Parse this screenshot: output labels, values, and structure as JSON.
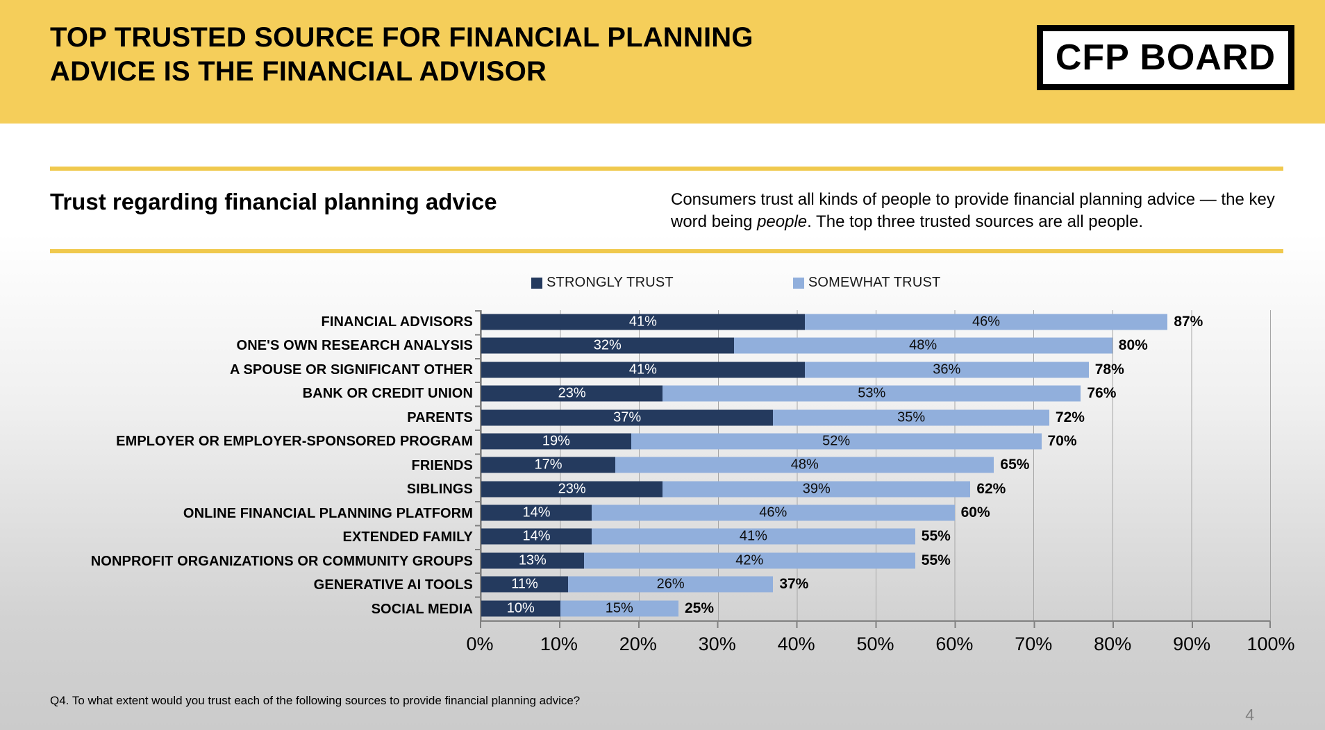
{
  "header": {
    "title_line1": "TOP TRUSTED SOURCE FOR FINANCIAL PLANNING",
    "title_line2": "ADVICE IS THE FINANCIAL ADVISOR",
    "logo_text": "CFP BOARD"
  },
  "section": {
    "title": "Trust regarding financial planning advice",
    "description_before_italic": "Consumers trust all kinds of people to provide financial planning advice — the key word being ",
    "description_italic": "people",
    "description_after_italic": ". The top three trusted sources are all people."
  },
  "colors": {
    "header_yellow": "#F5CE5A",
    "divider_yellow": "#F0C94E",
    "strongly_trust": "#243A5E",
    "somewhat_trust": "#91AFDC",
    "gridline": "#A6A6A6",
    "axis": "#808080"
  },
  "chart_data": {
    "type": "bar",
    "orientation": "horizontal",
    "stacked": true,
    "grid": true,
    "legend_position": "top",
    "xlim": [
      0,
      100
    ],
    "x_ticks": [
      "0%",
      "10%",
      "20%",
      "30%",
      "40%",
      "50%",
      "60%",
      "70%",
      "80%",
      "90%",
      "100%"
    ],
    "categories": [
      "FINANCIAL ADVISORS",
      "ONE'S OWN RESEARCH ANALYSIS",
      "A SPOUSE OR SIGNIFICANT OTHER",
      "BANK OR CREDIT UNION",
      "PARENTS",
      "EMPLOYER OR EMPLOYER-SPONSORED PROGRAM",
      "FRIENDS",
      "SIBLINGS",
      "ONLINE FINANCIAL PLANNING PLATFORM",
      "EXTENDED FAMILY",
      "NONPROFIT ORGANIZATIONS OR COMMUNITY GROUPS",
      "GENERATIVE AI TOOLS",
      "SOCIAL MEDIA"
    ],
    "series": [
      {
        "name": "STRONGLY TRUST",
        "color": "#243A5E",
        "values": [
          41,
          32,
          41,
          23,
          37,
          19,
          17,
          23,
          14,
          14,
          13,
          11,
          10
        ]
      },
      {
        "name": "SOMEWHAT TRUST",
        "color": "#91AFDC",
        "values": [
          46,
          48,
          36,
          53,
          35,
          52,
          48,
          39,
          46,
          41,
          42,
          26,
          15
        ]
      }
    ],
    "totals": [
      87,
      80,
      78,
      76,
      72,
      70,
      65,
      62,
      60,
      55,
      55,
      37,
      25
    ]
  },
  "footer": {
    "note": "Q4. To what extent would you trust each of the following sources to provide financial planning advice?",
    "page_number": "4"
  }
}
